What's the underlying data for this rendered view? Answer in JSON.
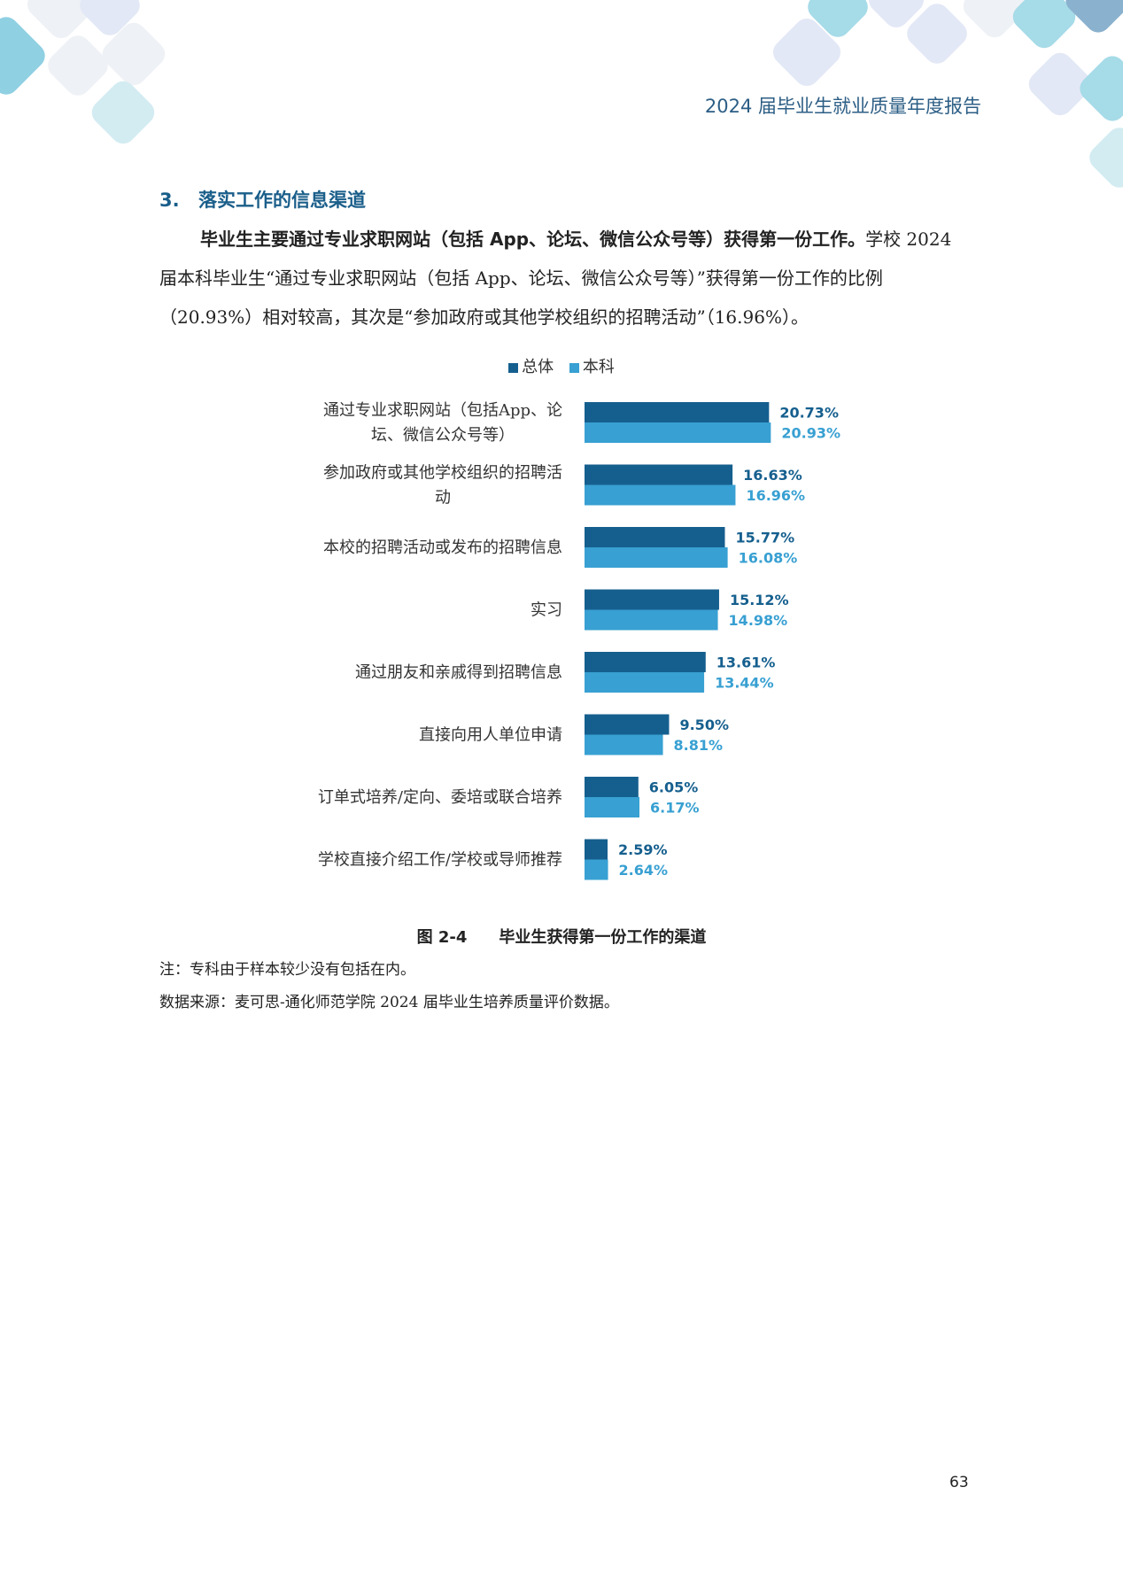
{
  "header": {
    "running_title": "2024 届毕业生就业质量年度报告"
  },
  "section": {
    "number": "3.",
    "title": "落实工作的信息渠道"
  },
  "paragraph": {
    "lead_bold": "毕业生主要通过专业求职网站（包括 App、论坛、微信公众号等）获得第一份工作。",
    "body": "学校 2024 届本科毕业生“通过专业求职网站（包括 App、论坛、微信公众号等）”获得第一份工作的比例（20.93%）相对较高，其次是“参加政府或其他学校组织的招聘活动”（16.96%）。"
  },
  "colors": {
    "series_total": "#155f8e",
    "series_undergrad": "#38a0d2",
    "accent_text": "#1a5e8a"
  },
  "legend": {
    "total_label": "总体",
    "undergrad_label": "本科"
  },
  "chart_data": {
    "type": "bar",
    "orientation": "horizontal",
    "categories": [
      [
        "通过专业求职网站（包括App、论",
        "坛、微信公众号等）"
      ],
      [
        "参加政府或其他学校组织的招聘活",
        "动"
      ],
      [
        "本校的招聘活动或发布的招聘信息"
      ],
      [
        "实习"
      ],
      [
        "通过朋友和亲戚得到招聘信息"
      ],
      [
        "直接向用人单位申请"
      ],
      [
        "订单式培养/定向、委培或联合培养"
      ],
      [
        "学校直接介绍工作/学校或导师推荐"
      ]
    ],
    "series": [
      {
        "name": "总体",
        "values": [
          20.73,
          16.63,
          15.77,
          15.12,
          13.61,
          9.5,
          6.05,
          2.59
        ],
        "labels": [
          "20.73%",
          "16.63%",
          "15.77%",
          "15.12%",
          "13.61%",
          "9.50%",
          "6.05%",
          "2.59%"
        ]
      },
      {
        "name": "本科",
        "values": [
          20.93,
          16.96,
          16.08,
          14.98,
          13.44,
          8.81,
          6.17,
          2.64
        ],
        "labels": [
          "20.93%",
          "16.96%",
          "16.08%",
          "14.98%",
          "13.44%",
          "8.81%",
          "6.17%",
          "2.64%"
        ]
      }
    ],
    "unit": "%",
    "grid": false,
    "legend_position": "top"
  },
  "figure": {
    "number": "图 2-4",
    "caption": "毕业生获得第一份工作的渠道"
  },
  "notes": {
    "note": "注：专科由于样本较少没有包括在内。",
    "source": "数据来源：麦可思-通化师范学院 2024 届毕业生培养质量评价数据。"
  },
  "page_number": "63"
}
